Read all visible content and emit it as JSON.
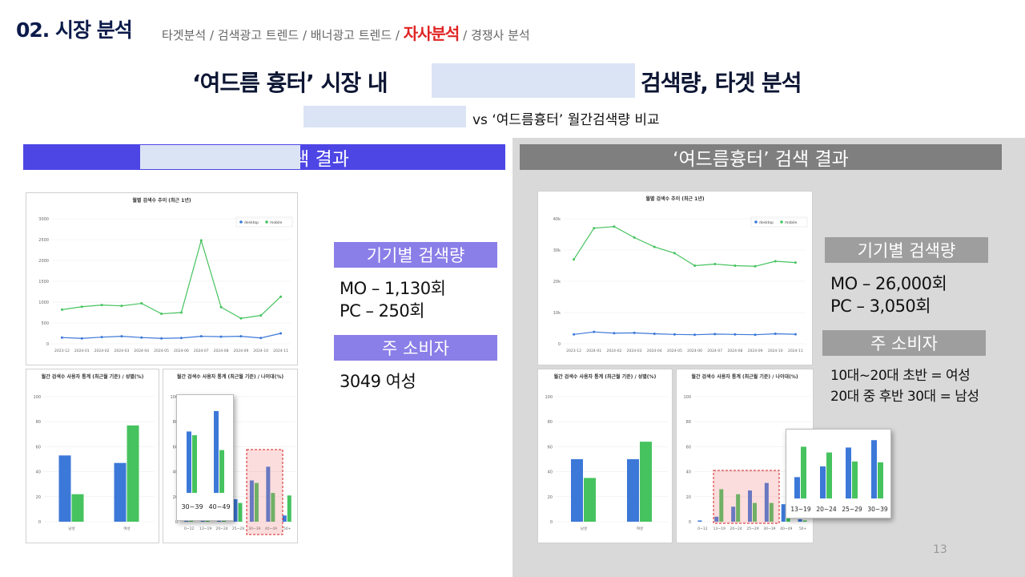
{
  "header": {
    "title": "02. 시장 분석",
    "breadcrumb": [
      {
        "label": "타겟분석",
        "active": false
      },
      {
        "label": "검색광고 트렌드",
        "active": false
      },
      {
        "label": "배너광고 트렌드",
        "active": false
      },
      {
        "label": "자사분석",
        "active": true
      },
      {
        "label": "경쟁사 분석",
        "active": false
      }
    ],
    "separator": " / "
  },
  "main_heading": {
    "left": "‘여드름 흉터’ 시장 내",
    "right": "검색량, 타겟 분석"
  },
  "sub_heading": "vs ‘여드름흉터’ 월간검색량 비교",
  "left_section": {
    "header": "검색 결과",
    "device_label": "기기별 검색량",
    "device_lines": [
      "MO – 1,130회",
      "PC – 250회"
    ],
    "consumer_label": "주 소비자",
    "consumer_lines": [
      "3049 여성"
    ]
  },
  "right_section": {
    "header": "‘여드름흉터’ 검색 결과",
    "device_label": "기기별 검색량",
    "device_lines": [
      "MO – 26,000회",
      "PC – 3,050회"
    ],
    "consumer_label": "주 소비자",
    "consumer_lines": [
      "10대~20대 초반 = 여성",
      "20대 중 후반 30대 = 남성"
    ]
  },
  "page_number": "13",
  "colors": {
    "desktop": "#3c78d8",
    "mobile": "#46c35f",
    "accent": "#4d46e5",
    "gray_header": "#7f7f7f",
    "label_purple": "#8a7ee8",
    "label_gray": "#9e9e9e"
  },
  "chart_data": [
    {
      "id": "left-trend",
      "type": "line",
      "title": "월별 검색수 추이 (최근 1년)",
      "x": [
        "2023-12",
        "2024-01",
        "2024-02",
        "2024-03",
        "2024-04",
        "2024-05",
        "2024-06",
        "2024-07",
        "2024-08",
        "2024-09",
        "2024-10",
        "2024-11"
      ],
      "ylim": [
        0,
        3000
      ],
      "yticks": [
        0,
        500,
        1000,
        1500,
        2000,
        2500,
        3000
      ],
      "ytick_labels": [
        "0",
        "500",
        "1000",
        "1500",
        "2000",
        "2500",
        "3000"
      ],
      "legend": "top-right",
      "series": [
        {
          "name": "desktop",
          "color": "#3c78d8",
          "values": [
            150,
            130,
            160,
            180,
            150,
            130,
            140,
            180,
            170,
            180,
            140,
            250
          ]
        },
        {
          "name": "mobile",
          "color": "#46c35f",
          "values": [
            820,
            890,
            930,
            910,
            970,
            720,
            750,
            2480,
            880,
            610,
            680,
            1130
          ]
        }
      ]
    },
    {
      "id": "left-gender",
      "type": "bar",
      "title": "월간 검색수 사용자 통계 (최근월 기준) / 성별(%)",
      "categories": [
        "남성",
        "여성"
      ],
      "ylim": [
        0,
        100
      ],
      "yticks": [
        0,
        20,
        40,
        60,
        80,
        100
      ],
      "series": [
        {
          "name": "desktop",
          "color": "#3c78d8",
          "values": [
            53,
            47
          ]
        },
        {
          "name": "mobile",
          "color": "#46c35f",
          "values": [
            22,
            77
          ]
        }
      ]
    },
    {
      "id": "left-age",
      "type": "bar",
      "title": "월간 검색수 사용자 통계 (최근월 기준) / 나이대(%)",
      "categories": [
        "0~12",
        "13~19",
        "20~24",
        "25~29",
        "30~39",
        "40~49",
        "50+"
      ],
      "ylim": [
        0,
        100
      ],
      "yticks": [
        0,
        20,
        40,
        60,
        80,
        100
      ],
      "series": [
        {
          "name": "desktop",
          "color": "#3c78d8",
          "values": [
            2,
            7,
            16,
            18,
            33,
            44,
            5
          ]
        },
        {
          "name": "mobile",
          "color": "#46c35f",
          "values": [
            1,
            3,
            12,
            15,
            31,
            23,
            21
          ]
        }
      ],
      "zoom": {
        "categories": [
          "30~39",
          "40~49"
        ],
        "desktop": [
          33,
          44
        ],
        "mobile": [
          31,
          23
        ]
      }
    },
    {
      "id": "right-trend",
      "type": "line",
      "title": "월별 검색수 추이 (최근 1년)",
      "x": [
        "2023-12",
        "2024-01",
        "2024-02",
        "2024-03",
        "2024-04",
        "2024-05",
        "2024-06",
        "2024-07",
        "2024-08",
        "2024-09",
        "2024-10",
        "2024-11"
      ],
      "ylim": [
        0,
        40000
      ],
      "yticks": [
        0,
        10000,
        20000,
        30000,
        40000
      ],
      "ytick_labels": [
        "0",
        "10k",
        "20k",
        "30k",
        "40k"
      ],
      "legend": "top-right",
      "series": [
        {
          "name": "desktop",
          "color": "#3c78d8",
          "values": [
            3000,
            3800,
            3400,
            3500,
            3200,
            3000,
            2900,
            3100,
            3000,
            2900,
            3200,
            3050
          ]
        },
        {
          "name": "mobile",
          "color": "#46c35f",
          "values": [
            27000,
            37000,
            37500,
            34000,
            31000,
            29000,
            25000,
            25500,
            25000,
            24800,
            26400,
            26000
          ]
        }
      ]
    },
    {
      "id": "right-gender",
      "type": "bar",
      "title": "월간 검색수 사용자 통계 (최근월 기준) / 성별(%)",
      "categories": [
        "남성",
        "여성"
      ],
      "ylim": [
        0,
        100
      ],
      "yticks": [
        0,
        20,
        40,
        60,
        80,
        100
      ],
      "series": [
        {
          "name": "desktop",
          "color": "#3c78d8",
          "values": [
            50,
            50
          ]
        },
        {
          "name": "mobile",
          "color": "#46c35f",
          "values": [
            35,
            64
          ]
        }
      ]
    },
    {
      "id": "right-age",
      "type": "bar",
      "title": "월간 검색수 사용자 통계 (최근월 기준) / 나이대(%)",
      "categories": [
        "0~12",
        "13~19",
        "20~24",
        "25~29",
        "30~39",
        "40~49",
        "50+"
      ],
      "ylim": [
        0,
        100
      ],
      "yticks": [
        0,
        20,
        40,
        60,
        80,
        100
      ],
      "series": [
        {
          "name": "desktop",
          "color": "#3c78d8",
          "values": [
            1,
            4,
            12,
            25,
            31,
            14,
            2
          ]
        },
        {
          "name": "mobile",
          "color": "#46c35f",
          "values": [
            0,
            26,
            22,
            15,
            15,
            14,
            1
          ]
        }
      ],
      "zoom": {
        "categories": [
          "13~19",
          "20~24",
          "25~29",
          "30~39"
        ],
        "desktop": [
          26,
          39,
          62,
          71
        ],
        "mobile": [
          63,
          56,
          45,
          44
        ]
      }
    }
  ]
}
